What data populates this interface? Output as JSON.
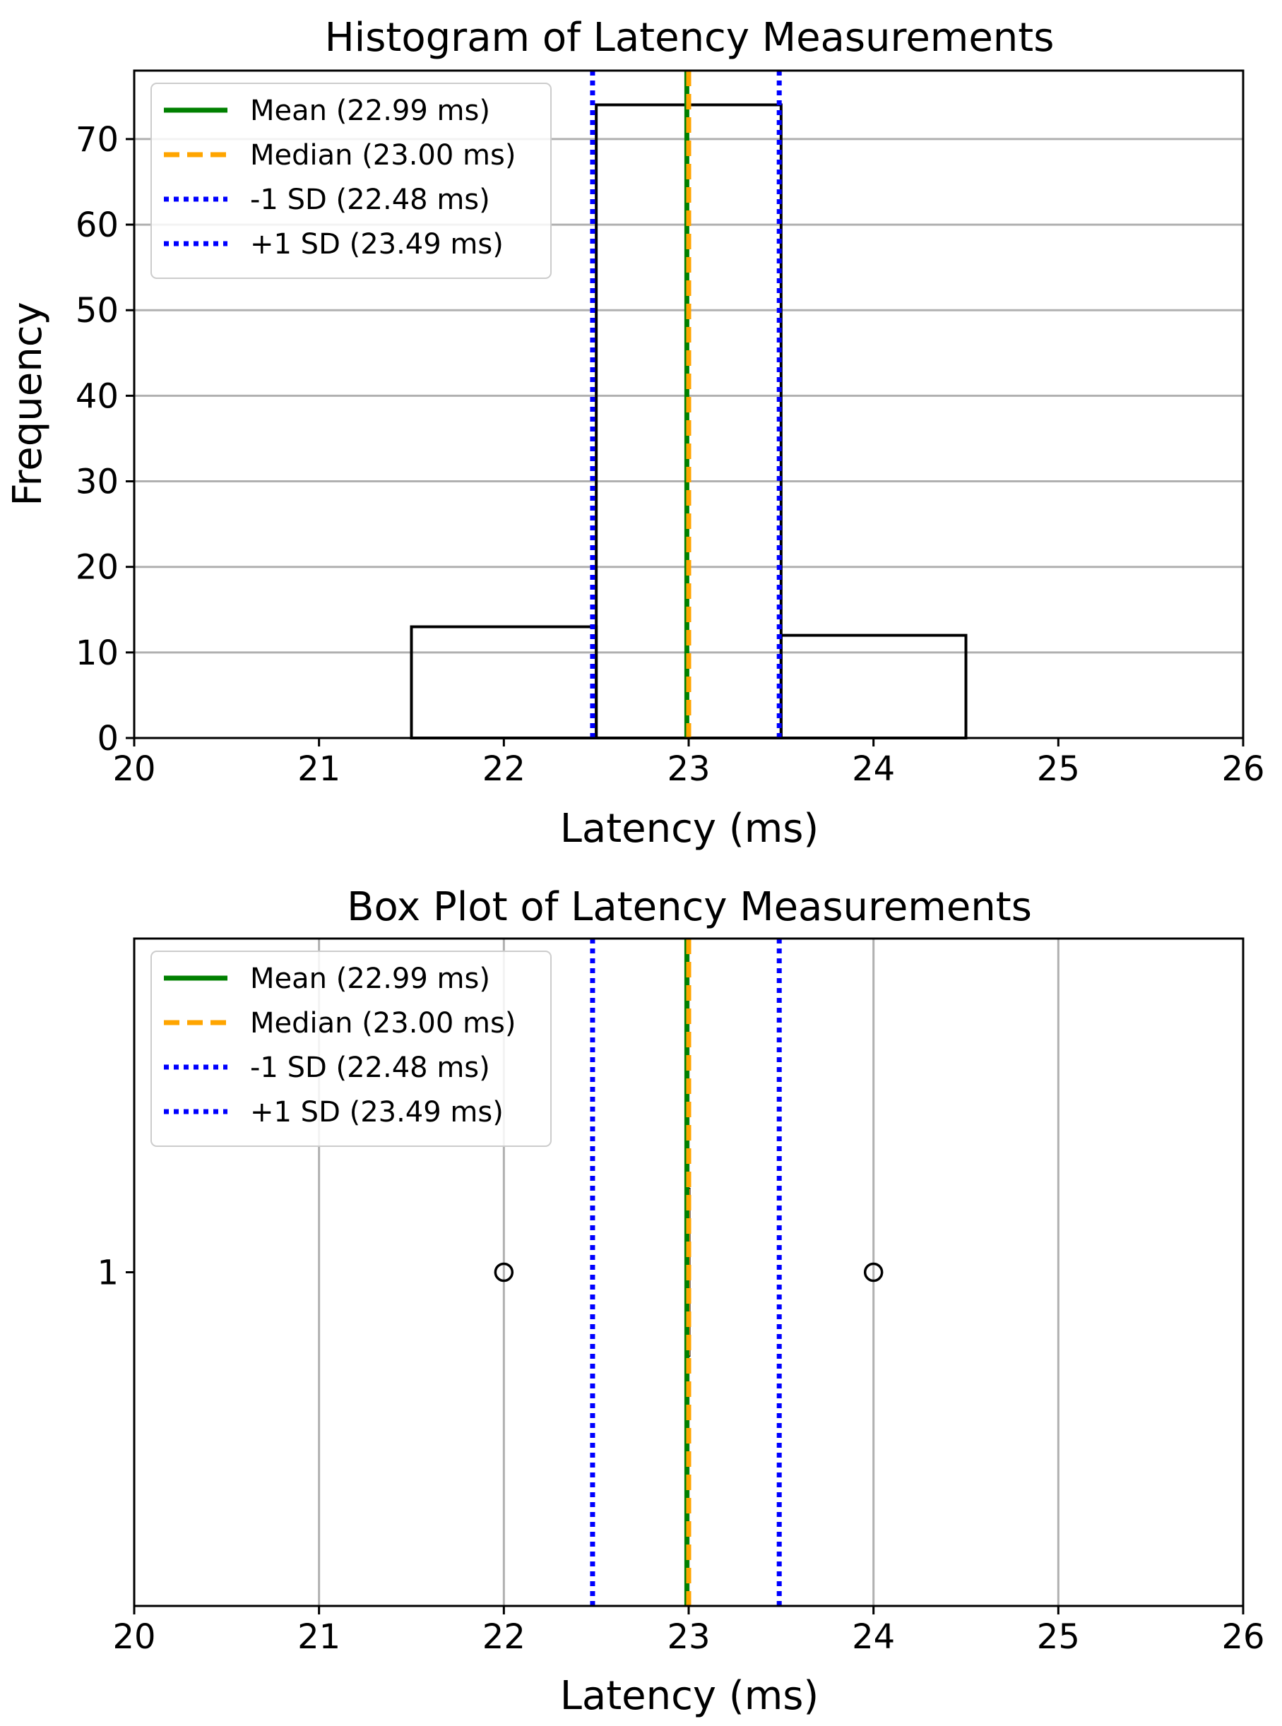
{
  "chart_data": [
    {
      "type": "bar",
      "subtype": "histogram",
      "title": "Histogram of Latency Measurements",
      "xlabel": "Latency (ms)",
      "ylabel": "Frequency",
      "xlim": [
        20,
        26
      ],
      "ylim": [
        0,
        78
      ],
      "xticks": [
        "20",
        "21",
        "22",
        "23",
        "24",
        "25",
        "26"
      ],
      "yticks": [
        "0",
        "10",
        "20",
        "30",
        "40",
        "50",
        "60",
        "70"
      ],
      "grid": "horizontal",
      "legend_position": "top-left",
      "bins": [
        {
          "x0": 21.5,
          "x1": 22.5,
          "count": 13
        },
        {
          "x0": 22.5,
          "x1": 23.5,
          "count": 74
        },
        {
          "x0": 23.5,
          "x1": 24.5,
          "count": 12
        }
      ],
      "histogram_color": "#000000",
      "reference_lines": [
        {
          "label": "Mean (22.99 ms)",
          "x": 22.99,
          "color": "#008000",
          "style": "solid"
        },
        {
          "label": "Median (23.00 ms)",
          "x": 23.0,
          "color": "#FFA500",
          "style": "dashed"
        },
        {
          "label": "-1 SD (22.48 ms)",
          "x": 22.48,
          "color": "#0000FF",
          "style": "dotted"
        },
        {
          "label": "+1 SD (23.49 ms)",
          "x": 23.49,
          "color": "#0000FF",
          "style": "dotted"
        }
      ]
    },
    {
      "type": "box",
      "orientation": "horizontal",
      "title": "Box Plot of Latency Measurements",
      "xlabel": "Latency (ms)",
      "ylabel": "",
      "xlim": [
        20,
        26
      ],
      "xticks": [
        "20",
        "21",
        "22",
        "23",
        "24",
        "25",
        "26"
      ],
      "ytick": "1",
      "grid": "vertical",
      "legend_position": "top-left",
      "box": {
        "q1": 23.0,
        "median": 23.0,
        "q3": 23.0,
        "whisker_low": 23.0,
        "whisker_high": 23.0
      },
      "outliers": [
        22.0,
        24.0
      ],
      "median_color": "#FF7F0E",
      "reference_lines": [
        {
          "label": "Mean (22.99 ms)",
          "x": 22.99,
          "color": "#008000",
          "style": "solid"
        },
        {
          "label": "Median (23.00 ms)",
          "x": 23.0,
          "color": "#FFA500",
          "style": "dashed"
        },
        {
          "label": "-1 SD (22.48 ms)",
          "x": 22.48,
          "color": "#0000FF",
          "style": "dotted"
        },
        {
          "label": "+1 SD (23.49 ms)",
          "x": 23.49,
          "color": "#0000FF",
          "style": "dotted"
        }
      ]
    }
  ]
}
